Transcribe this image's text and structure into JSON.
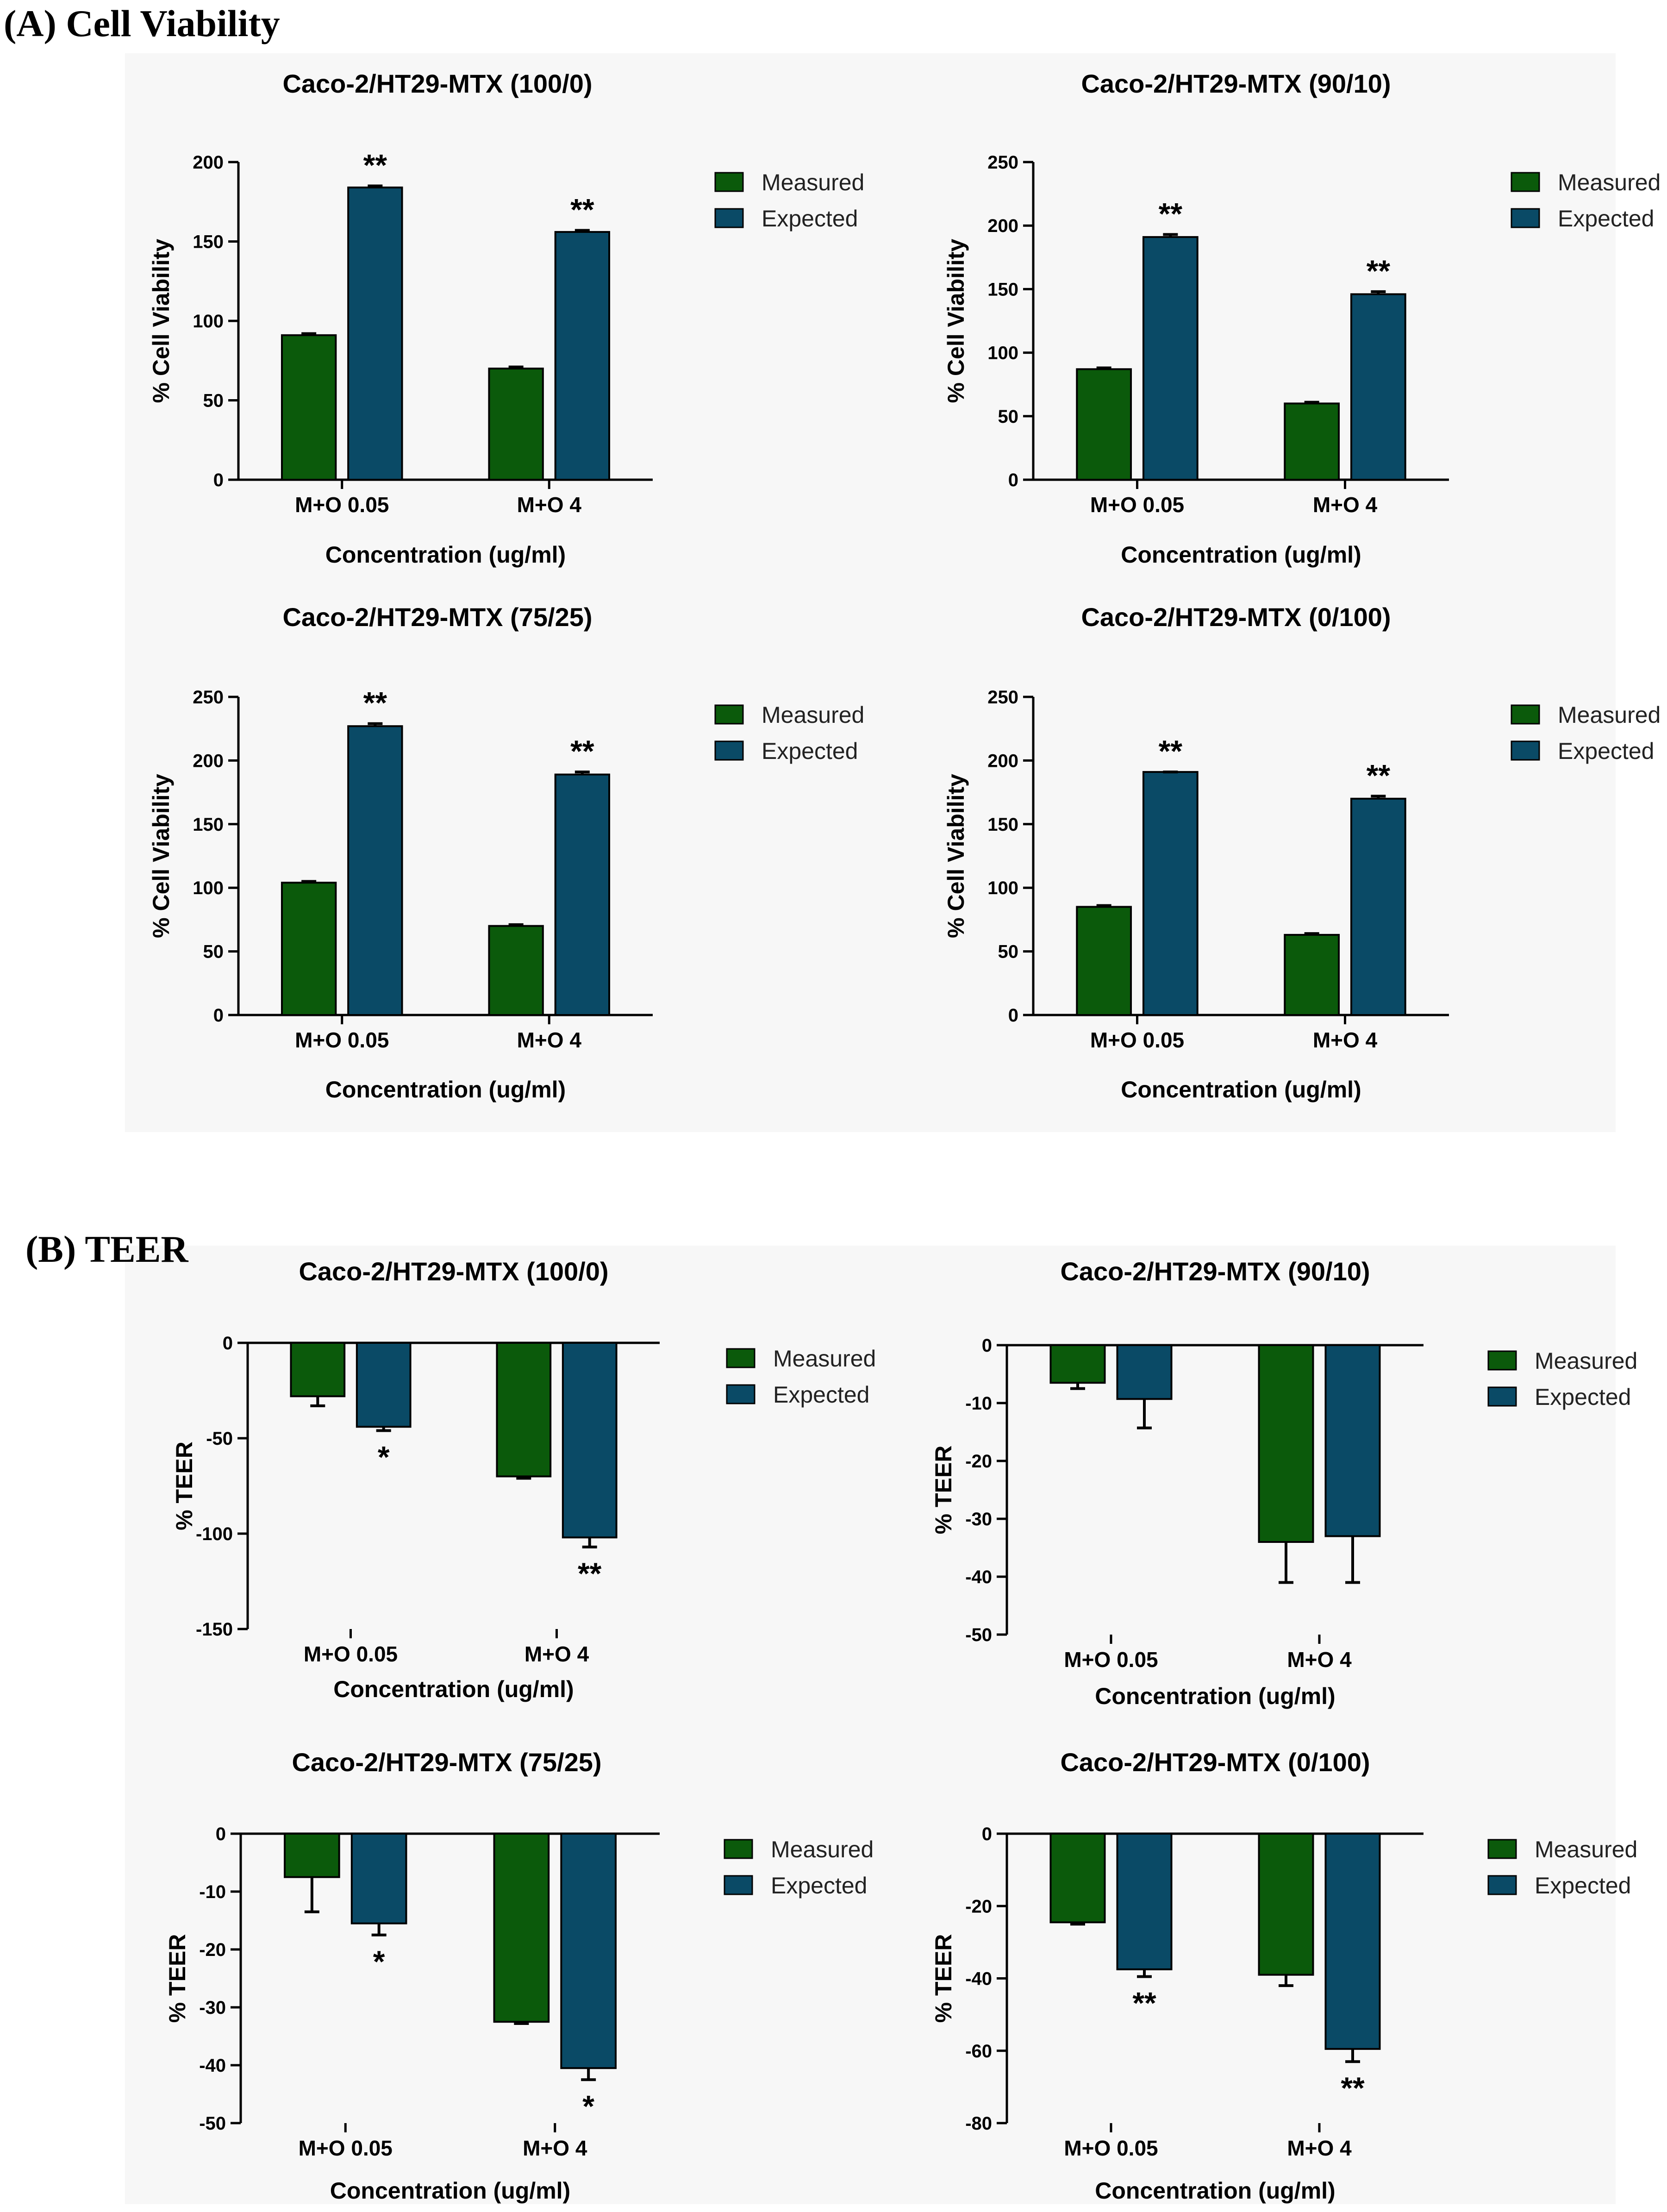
{
  "sections": [
    {
      "id": "A",
      "title": "(A) Cell Viability"
    },
    {
      "id": "B",
      "title": "(B) TEER"
    }
  ],
  "colors": {
    "measured": "#0b5a0b",
    "expected": "#0a4a66"
  },
  "chart_data": [
    {
      "section": "A",
      "type": "bar",
      "title": "Caco-2/HT29-MTX (100/0)",
      "xlabel": "Concentration (ug/ml)",
      "ylabel": "% Cell Viability",
      "categories": [
        "M+O 0.05",
        "M+O 4"
      ],
      "ylim": [
        0,
        200
      ],
      "yticks": [
        0,
        50,
        100,
        150,
        200
      ],
      "ytick_labels": [
        "0",
        "50",
        "100",
        "150",
        "200"
      ],
      "legend": [
        "Measured",
        "Expected"
      ],
      "series": [
        {
          "name": "Measured",
          "values": [
            91,
            70
          ],
          "errors": [
            1,
            1
          ],
          "sig": [
            "",
            ""
          ]
        },
        {
          "name": "Expected",
          "values": [
            184,
            156
          ],
          "errors": [
            1,
            1
          ],
          "sig": [
            "**",
            "**"
          ]
        }
      ]
    },
    {
      "section": "A",
      "type": "bar",
      "title": "Caco-2/HT29-MTX (90/10)",
      "xlabel": "Concentration (ug/ml)",
      "ylabel": "% Cell Viability",
      "categories": [
        "M+O 0.05",
        "M+O 4"
      ],
      "ylim": [
        0,
        250
      ],
      "yticks": [
        0,
        50,
        100,
        150,
        200,
        250
      ],
      "ytick_labels": [
        "0",
        "50",
        "100",
        "150",
        "200",
        "250"
      ],
      "legend": [
        "Measured",
        "Expected"
      ],
      "series": [
        {
          "name": "Measured",
          "values": [
            87,
            60
          ],
          "errors": [
            1,
            1
          ],
          "sig": [
            "",
            ""
          ]
        },
        {
          "name": "Expected",
          "values": [
            191,
            146
          ],
          "errors": [
            2,
            2
          ],
          "sig": [
            "**",
            "**"
          ]
        }
      ]
    },
    {
      "section": "A",
      "type": "bar",
      "title": "Caco-2/HT29-MTX (75/25)",
      "xlabel": "Concentration (ug/ml)",
      "ylabel": "% Cell Viability",
      "categories": [
        "M+O 0.05",
        "M+O 4"
      ],
      "ylim": [
        0,
        250
      ],
      "yticks": [
        0,
        50,
        100,
        150,
        200,
        250
      ],
      "ytick_labels": [
        "0",
        "50",
        "100",
        "150",
        "200",
        "250"
      ],
      "legend": [
        "Measured",
        "Expected"
      ],
      "series": [
        {
          "name": "Measured",
          "values": [
            104,
            70
          ],
          "errors": [
            1,
            1
          ],
          "sig": [
            "",
            ""
          ]
        },
        {
          "name": "Expected",
          "values": [
            227,
            189
          ],
          "errors": [
            2,
            2
          ],
          "sig": [
            "**",
            "**"
          ]
        }
      ]
    },
    {
      "section": "A",
      "type": "bar",
      "title": "Caco-2/HT29-MTX (0/100)",
      "xlabel": "Concentration (ug/ml)",
      "ylabel": "% Cell Viability",
      "categories": [
        "M+O 0.05",
        "M+O 4"
      ],
      "ylim": [
        0,
        250
      ],
      "yticks": [
        0,
        50,
        100,
        150,
        200,
        250
      ],
      "ytick_labels": [
        "0",
        "50",
        "100",
        "150",
        "200",
        "250"
      ],
      "legend": [
        "Measured",
        "Expected"
      ],
      "series": [
        {
          "name": "Measured",
          "values": [
            85,
            63
          ],
          "errors": [
            1,
            1
          ],
          "sig": [
            "",
            ""
          ]
        },
        {
          "name": "Expected",
          "values": [
            191,
            170
          ],
          "errors": [
            0,
            2
          ],
          "sig": [
            "**",
            "**"
          ]
        }
      ]
    },
    {
      "section": "B",
      "type": "bar",
      "title": "Caco-2/HT29-MTX (100/0)",
      "xlabel": "Concentration (ug/ml)",
      "ylabel": "% TEER",
      "categories": [
        "M+O 0.05",
        "M+O 4"
      ],
      "ylim": [
        -150,
        0
      ],
      "yticks": [
        0,
        -50,
        -100,
        -150
      ],
      "ytick_labels": [
        "0",
        "-50",
        "-100",
        "-150"
      ],
      "legend": [
        "Measured",
        "Expected"
      ],
      "series": [
        {
          "name": "Measured",
          "values": [
            -28,
            -70
          ],
          "errors": [
            5,
            1
          ],
          "sig": [
            "",
            ""
          ]
        },
        {
          "name": "Expected",
          "values": [
            -44,
            -102
          ],
          "errors": [
            2,
            5
          ],
          "sig": [
            "*",
            "**"
          ]
        }
      ]
    },
    {
      "section": "B",
      "type": "bar",
      "title": "Caco-2/HT29-MTX (90/10)",
      "xlabel": "Concentration (ug/ml)",
      "ylabel": "% TEER",
      "categories": [
        "M+O 0.05",
        "M+O 4"
      ],
      "ylim": [
        -50,
        0
      ],
      "yticks": [
        0,
        -10,
        -20,
        -30,
        -40,
        -50
      ],
      "ytick_labels": [
        "0",
        "-10",
        "-20",
        "-30",
        "-40",
        "-50"
      ],
      "legend": [
        "Measured",
        "Expected"
      ],
      "series": [
        {
          "name": "Measured",
          "values": [
            -6.5,
            -34
          ],
          "errors": [
            1,
            7
          ],
          "sig": [
            "",
            ""
          ]
        },
        {
          "name": "Expected",
          "values": [
            -9.3,
            -33
          ],
          "errors": [
            5,
            8
          ],
          "sig": [
            "",
            ""
          ]
        }
      ]
    },
    {
      "section": "B",
      "type": "bar",
      "title": "Caco-2/HT29-MTX (75/25)",
      "xlabel": "Concentration (ug/ml)",
      "ylabel": "% TEER",
      "categories": [
        "M+O 0.05",
        "M+O 4"
      ],
      "ylim": [
        -50,
        0
      ],
      "yticks": [
        0,
        -10,
        -20,
        -30,
        -40,
        -50
      ],
      "ytick_labels": [
        "0",
        "-10",
        "-20",
        "-30",
        "-40",
        "-50"
      ],
      "legend": [
        "Measured",
        "Expected"
      ],
      "series": [
        {
          "name": "Measured",
          "values": [
            -7.5,
            -32.5
          ],
          "errors": [
            6,
            0.3
          ],
          "sig": [
            "",
            ""
          ]
        },
        {
          "name": "Expected",
          "values": [
            -15.5,
            -40.5
          ],
          "errors": [
            2,
            2
          ],
          "sig": [
            "*",
            "*"
          ]
        }
      ]
    },
    {
      "section": "B",
      "type": "bar",
      "title": "Caco-2/HT29-MTX (0/100)",
      "xlabel": "Concentration (ug/ml)",
      "ylabel": "% TEER",
      "categories": [
        "M+O 0.05",
        "M+O 4"
      ],
      "ylim": [
        -80,
        0
      ],
      "yticks": [
        0,
        -20,
        -40,
        -60,
        -80
      ],
      "ytick_labels": [
        "0",
        "-20",
        "-40",
        "-60",
        "-80"
      ],
      "legend": [
        "Measured",
        "Expected"
      ],
      "series": [
        {
          "name": "Measured",
          "values": [
            -24.5,
            -39
          ],
          "errors": [
            0.5,
            3
          ],
          "sig": [
            "",
            ""
          ]
        },
        {
          "name": "Expected",
          "values": [
            -37.5,
            -59.5
          ],
          "errors": [
            2,
            3.5
          ],
          "sig": [
            "**",
            "**"
          ]
        }
      ]
    }
  ]
}
